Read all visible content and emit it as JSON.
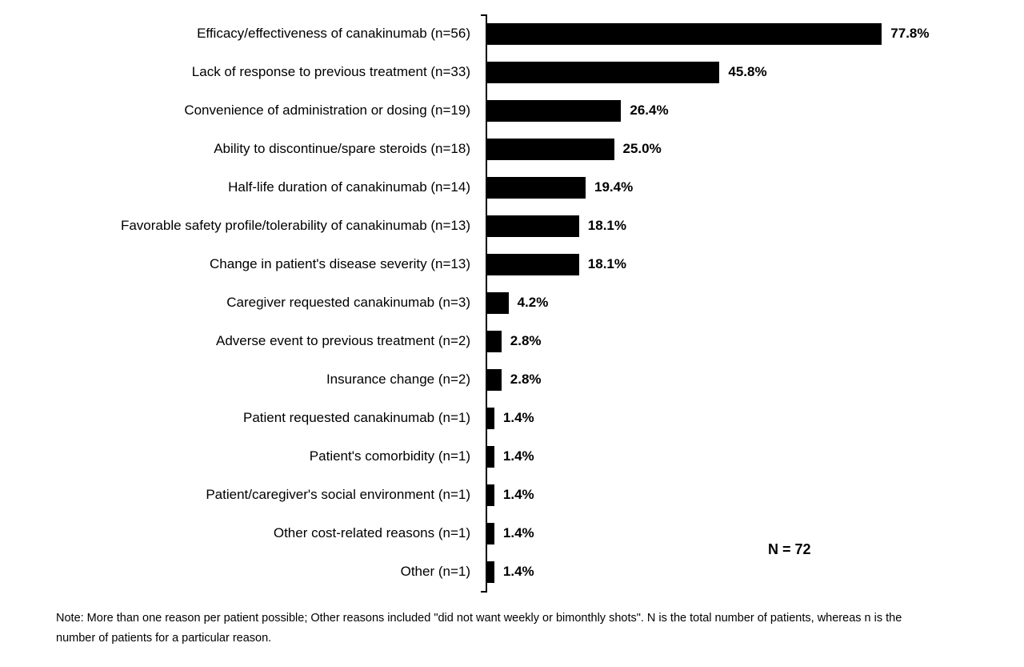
{
  "chart_data": {
    "type": "bar",
    "orientation": "horizontal",
    "title": "",
    "xlabel": "",
    "ylabel": "",
    "xlim": [
      0,
      100
    ],
    "grid": false,
    "bar_color": "#000000",
    "categories": [
      "Efficacy/effectiveness of canakinumab (n=56)",
      "Lack of response to previous treatment (n=33)",
      "Convenience of administration or dosing (n=19)",
      "Ability to discontinue/spare steroids (n=18)",
      "Half-life duration of canakinumab (n=14)",
      "Favorable safety profile/tolerability of canakinumab (n=13)",
      "Change in patient's disease severity (n=13)",
      "Caregiver requested canakinumab (n=3)",
      "Adverse event to previous treatment (n=2)",
      "Insurance change (n=2)",
      "Patient requested canakinumab (n=1)",
      "Patient's comorbidity (n=1)",
      "Patient/caregiver's social environment (n=1)",
      "Other cost-related reasons (n=1)",
      "Other (n=1)"
    ],
    "values": [
      77.8,
      45.8,
      26.4,
      25.0,
      19.4,
      18.1,
      18.1,
      4.2,
      2.8,
      2.8,
      1.4,
      1.4,
      1.4,
      1.4,
      1.4
    ],
    "value_labels": [
      "77.8%",
      "45.8%",
      "26.4%",
      "25.0%",
      "19.4%",
      "18.1%",
      "18.1%",
      "4.2%",
      "2.8%",
      "2.8%",
      "1.4%",
      "1.4%",
      "1.4%",
      "1.4%",
      "1.4%"
    ],
    "n_counts": [
      56,
      33,
      19,
      18,
      14,
      13,
      13,
      3,
      2,
      2,
      1,
      1,
      1,
      1,
      1
    ],
    "annotation": "N = 72",
    "n_total": 72
  },
  "note": {
    "text": "Note: More than one reason per patient possible; Other reasons included \"did not want weekly or bimonthly shots\". N is the total number of patients, whereas n is the number of patients for a particular reason."
  }
}
